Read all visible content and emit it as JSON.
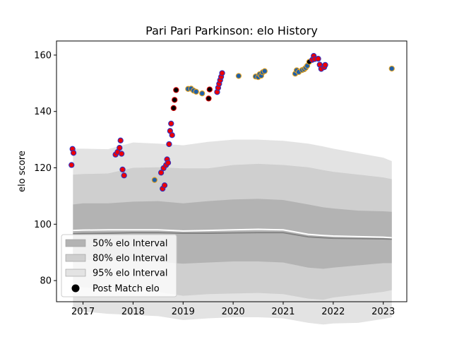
{
  "chart_data": {
    "type": "scatter",
    "title": "Pari Pari Parkinson: elo History",
    "xlabel": "",
    "ylabel": "elo score",
    "xlim": [
      2016.47,
      2023.47
    ],
    "ylim": [
      72.5,
      165.0
    ],
    "x_ticks": [
      {
        "value": 2017,
        "label": "2017"
      },
      {
        "value": 2018,
        "label": "2018"
      },
      {
        "value": 2019,
        "label": "2019"
      },
      {
        "value": 2020,
        "label": "2020"
      },
      {
        "value": 2021,
        "label": "2021"
      },
      {
        "value": 2022,
        "label": "2022"
      },
      {
        "value": 2023,
        "label": "2023"
      }
    ],
    "y_ticks": [
      {
        "value": 80,
        "label": "80"
      },
      {
        "value": 100,
        "label": "100"
      },
      {
        "value": 120,
        "label": "120"
      },
      {
        "value": 140,
        "label": "140"
      },
      {
        "value": 160,
        "label": "160"
      }
    ],
    "grid": false,
    "legend_placement": "lower-left",
    "legend": [
      {
        "label": "50% elo Interval",
        "kind": "band50"
      },
      {
        "label": "80% elo Interval",
        "kind": "band80"
      },
      {
        "label": "95% elo Interval",
        "kind": "band95"
      },
      {
        "label": "Post Match elo",
        "kind": "marker"
      }
    ],
    "colors": {
      "band50": "#b3b3b3",
      "band80": "#cfcfcf",
      "band95": "#e3e3e3",
      "mean_line": "#808080",
      "median_line": "#ffffff",
      "marker_fill_red": "#ee0000",
      "marker_fill_blue": "#1f5fa8",
      "marker_fill_black": "#000000",
      "marker_edge_blue": "#3030c0",
      "marker_edge_orange": "#e0a020",
      "marker_edge_red": "#d00000"
    },
    "bands": {
      "x": [
        2016.8,
        2017.0,
        2017.5,
        2018.0,
        2018.5,
        2019.0,
        2019.5,
        2020.0,
        2020.5,
        2021.0,
        2021.5,
        2021.8,
        2022.0,
        2022.5,
        2023.0,
        2023.17
      ],
      "p95_upper": [
        126.8,
        126.8,
        126.6,
        129.0,
        128.6,
        128.0,
        129.2,
        130.0,
        130.0,
        129.6,
        128.6,
        127.6,
        126.8,
        125.2,
        123.6,
        122.4
      ],
      "p80_upper": [
        117.6,
        117.8,
        118.0,
        120.0,
        120.2,
        119.8,
        119.8,
        121.0,
        121.4,
        121.0,
        120.2,
        119.2,
        118.6,
        117.6,
        116.6,
        116.0
      ],
      "p50_upper": [
        107.0,
        107.4,
        107.4,
        108.0,
        108.2,
        107.4,
        108.2,
        108.8,
        109.0,
        108.6,
        107.0,
        106.0,
        105.6,
        104.8,
        104.6,
        104.4
      ],
      "median": [
        97.8,
        97.9,
        98.0,
        98.0,
        98.0,
        97.6,
        97.8,
        98.0,
        98.2,
        98.0,
        96.4,
        96.0,
        95.8,
        95.6,
        95.4,
        95.2
      ],
      "mean": [
        96.6,
        96.7,
        96.8,
        97.0,
        97.0,
        96.8,
        96.8,
        96.9,
        97.0,
        97.0,
        95.5,
        95.2,
        95.0,
        94.9,
        94.8,
        94.7
      ],
      "p50_lower": [
        87.6,
        87.4,
        87.0,
        87.4,
        86.6,
        86.0,
        86.4,
        86.8,
        86.8,
        86.4,
        84.6,
        84.2,
        84.6,
        85.4,
        86.2,
        86.2
      ],
      "p80_lower": [
        78.0,
        77.6,
        77.0,
        77.0,
        76.0,
        74.6,
        75.2,
        75.4,
        75.6,
        75.2,
        73.6,
        73.2,
        74.0,
        75.0,
        76.0,
        76.6
      ],
      "p95_lower": [
        69.2,
        69.0,
        68.2,
        67.8,
        67.4,
        66.0,
        66.6,
        67.0,
        67.0,
        66.6,
        65.0,
        64.4,
        64.8,
        65.0,
        66.4,
        67.0
      ]
    },
    "points": [
      {
        "x": 2016.77,
        "y": 121.0,
        "fill": "red",
        "edge": "blue"
      },
      {
        "x": 2016.79,
        "y": 126.7,
        "fill": "red",
        "edge": "blue"
      },
      {
        "x": 2016.81,
        "y": 125.3,
        "fill": "red",
        "edge": "blue"
      },
      {
        "x": 2017.65,
        "y": 124.7,
        "fill": "red",
        "edge": "blue"
      },
      {
        "x": 2017.69,
        "y": 125.6,
        "fill": "red",
        "edge": "blue"
      },
      {
        "x": 2017.73,
        "y": 127.1,
        "fill": "red",
        "edge": "blue"
      },
      {
        "x": 2017.75,
        "y": 129.7,
        "fill": "red",
        "edge": "blue"
      },
      {
        "x": 2017.77,
        "y": 125.0,
        "fill": "red",
        "edge": "blue"
      },
      {
        "x": 2017.79,
        "y": 119.4,
        "fill": "red",
        "edge": "blue"
      },
      {
        "x": 2017.82,
        "y": 117.3,
        "fill": "red",
        "edge": "blue"
      },
      {
        "x": 2018.43,
        "y": 115.7,
        "fill": "blue",
        "edge": "orange"
      },
      {
        "x": 2018.56,
        "y": 118.3,
        "fill": "red",
        "edge": "blue"
      },
      {
        "x": 2018.59,
        "y": 112.6,
        "fill": "red",
        "edge": "blue"
      },
      {
        "x": 2018.61,
        "y": 119.9,
        "fill": "red",
        "edge": "blue"
      },
      {
        "x": 2018.63,
        "y": 113.8,
        "fill": "red",
        "edge": "blue"
      },
      {
        "x": 2018.66,
        "y": 121.0,
        "fill": "red",
        "edge": "blue"
      },
      {
        "x": 2018.68,
        "y": 123.0,
        "fill": "red",
        "edge": "blue"
      },
      {
        "x": 2018.7,
        "y": 121.8,
        "fill": "red",
        "edge": "blue"
      },
      {
        "x": 2018.72,
        "y": 128.4,
        "fill": "red",
        "edge": "blue"
      },
      {
        "x": 2018.74,
        "y": 133.1,
        "fill": "red",
        "edge": "blue"
      },
      {
        "x": 2018.76,
        "y": 135.7,
        "fill": "red",
        "edge": "blue"
      },
      {
        "x": 2018.78,
        "y": 131.6,
        "fill": "red",
        "edge": "blue"
      },
      {
        "x": 2018.81,
        "y": 141.2,
        "fill": "black",
        "edge": "red"
      },
      {
        "x": 2018.83,
        "y": 144.1,
        "fill": "black",
        "edge": "red"
      },
      {
        "x": 2018.86,
        "y": 147.6,
        "fill": "black",
        "edge": "red"
      },
      {
        "x": 2019.1,
        "y": 148.0,
        "fill": "blue",
        "edge": "orange"
      },
      {
        "x": 2019.16,
        "y": 148.1,
        "fill": "blue",
        "edge": "orange"
      },
      {
        "x": 2019.21,
        "y": 147.4,
        "fill": "blue",
        "edge": "orange"
      },
      {
        "x": 2019.26,
        "y": 147.0,
        "fill": "blue",
        "edge": "orange"
      },
      {
        "x": 2019.38,
        "y": 146.4,
        "fill": "blue",
        "edge": "orange"
      },
      {
        "x": 2019.51,
        "y": 144.6,
        "fill": "black",
        "edge": "red"
      },
      {
        "x": 2019.53,
        "y": 147.8,
        "fill": "black",
        "edge": "red"
      },
      {
        "x": 2019.68,
        "y": 146.9,
        "fill": "red",
        "edge": "blue"
      },
      {
        "x": 2019.7,
        "y": 148.4,
        "fill": "red",
        "edge": "blue"
      },
      {
        "x": 2019.72,
        "y": 149.8,
        "fill": "red",
        "edge": "blue"
      },
      {
        "x": 2019.74,
        "y": 151.1,
        "fill": "red",
        "edge": "blue"
      },
      {
        "x": 2019.76,
        "y": 152.3,
        "fill": "red",
        "edge": "blue"
      },
      {
        "x": 2019.78,
        "y": 153.6,
        "fill": "red",
        "edge": "blue"
      },
      {
        "x": 2020.11,
        "y": 152.6,
        "fill": "blue",
        "edge": "orange"
      },
      {
        "x": 2020.45,
        "y": 152.4,
        "fill": "blue",
        "edge": "orange"
      },
      {
        "x": 2020.5,
        "y": 152.2,
        "fill": "blue",
        "edge": "orange"
      },
      {
        "x": 2020.53,
        "y": 153.2,
        "fill": "blue",
        "edge": "orange"
      },
      {
        "x": 2020.56,
        "y": 152.7,
        "fill": "blue",
        "edge": "orange"
      },
      {
        "x": 2020.59,
        "y": 153.9,
        "fill": "blue",
        "edge": "orange"
      },
      {
        "x": 2020.63,
        "y": 154.3,
        "fill": "blue",
        "edge": "orange"
      },
      {
        "x": 2021.24,
        "y": 153.4,
        "fill": "blue",
        "edge": "orange"
      },
      {
        "x": 2021.27,
        "y": 154.6,
        "fill": "blue",
        "edge": "orange"
      },
      {
        "x": 2021.31,
        "y": 154.0,
        "fill": "blue",
        "edge": "orange"
      },
      {
        "x": 2021.38,
        "y": 154.7,
        "fill": "blue",
        "edge": "orange"
      },
      {
        "x": 2021.42,
        "y": 155.0,
        "fill": "blue",
        "edge": "orange"
      },
      {
        "x": 2021.45,
        "y": 155.5,
        "fill": "blue",
        "edge": "orange"
      },
      {
        "x": 2021.48,
        "y": 156.2,
        "fill": "blue",
        "edge": "orange"
      },
      {
        "x": 2021.52,
        "y": 157.6,
        "fill": "black",
        "edge": "orange"
      },
      {
        "x": 2021.58,
        "y": 158.3,
        "fill": "red",
        "edge": "blue"
      },
      {
        "x": 2021.61,
        "y": 159.7,
        "fill": "red",
        "edge": "blue"
      },
      {
        "x": 2021.63,
        "y": 158.6,
        "fill": "red",
        "edge": "blue"
      },
      {
        "x": 2021.7,
        "y": 158.7,
        "fill": "red",
        "edge": "blue"
      },
      {
        "x": 2021.73,
        "y": 156.6,
        "fill": "red",
        "edge": "blue"
      },
      {
        "x": 2021.76,
        "y": 155.1,
        "fill": "red",
        "edge": "blue"
      },
      {
        "x": 2021.82,
        "y": 155.7,
        "fill": "red",
        "edge": "blue"
      },
      {
        "x": 2021.84,
        "y": 156.5,
        "fill": "red",
        "edge": "blue"
      },
      {
        "x": 2023.17,
        "y": 155.2,
        "fill": "blue",
        "edge": "orange"
      }
    ]
  }
}
